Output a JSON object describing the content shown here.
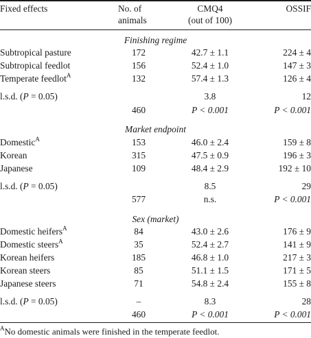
{
  "header": {
    "fixed_effects": "Fixed effects",
    "no_animals_line1": "No. of",
    "no_animals_line2": "animals",
    "cmq4_line1": "CMQ4",
    "cmq4_line2": "(out of 100)",
    "ossif": "OSSIF"
  },
  "finishing": {
    "title": "Finishing regime",
    "rows": [
      {
        "label": "Subtropical pasture",
        "n": "172",
        "cmq4": "42.7 ± 1.1",
        "ossif": "224 ± 4"
      },
      {
        "label": "Subtropical feedlot",
        "n": "156",
        "cmq4": "52.4 ± 1.0",
        "ossif": "147 ± 3"
      },
      {
        "label": "Temperate feedlot",
        "sup": "A",
        "n": "132",
        "cmq4": "57.4 ± 1.3",
        "ossif": "126 ± 4"
      }
    ],
    "lsd": {
      "pre": "l.s.d. (",
      "p": "P",
      "post": " = 0.05)",
      "n": "",
      "cmq4": "3.8",
      "ossif": "12"
    },
    "total": {
      "n": "460",
      "cmq4": "P < 0.001",
      "ossif": "P < 0.001"
    }
  },
  "market": {
    "title": "Market endpoint",
    "rows": [
      {
        "label": "Domestic",
        "sup": "A",
        "n": "153",
        "cmq4": "46.0 ± 2.4",
        "ossif": "159 ± 8"
      },
      {
        "label": "Korean",
        "n": "315",
        "cmq4": "47.5 ± 0.9",
        "ossif": "196 ± 3"
      },
      {
        "label": "Japanese",
        "n": "109",
        "cmq4": "48.4 ± 2.9",
        "ossif": "192 ± 10"
      }
    ],
    "lsd": {
      "pre": "l.s.d. (",
      "p": "P",
      "post": " = 0.05)",
      "n": "",
      "cmq4": "8.5",
      "ossif": "29"
    },
    "total": {
      "n": "577",
      "cmq4": "n.s.",
      "ossif": "P < 0.001"
    }
  },
  "sex": {
    "title": "Sex (market)",
    "rows": [
      {
        "label": "Domestic heifers",
        "sup": "A",
        "n": "84",
        "cmq4": "43.0 ± 2.6",
        "ossif": "176 ± 9"
      },
      {
        "label": "Domestic steers",
        "sup": "A",
        "n": "35",
        "cmq4": "52.4 ± 2.7",
        "ossif": "141 ± 9"
      },
      {
        "label": "Korean heifers",
        "n": "185",
        "cmq4": "46.8 ± 1.0",
        "ossif": "217 ± 3"
      },
      {
        "label": "Korean steers",
        "n": "85",
        "cmq4": "51.1 ± 1.5",
        "ossif": "171 ± 5"
      },
      {
        "label": "Japanese steers",
        "n": "71",
        "cmq4": "54.8 ± 2.4",
        "ossif": "155 ± 8"
      }
    ],
    "lsd": {
      "pre": "l.s.d. (",
      "p": "P",
      "post": " = 0.05)",
      "n": "–",
      "cmq4": "8.3",
      "ossif": "28"
    },
    "total": {
      "n": "460",
      "cmq4": "P < 0.001",
      "ossif": "P < 0.001"
    }
  },
  "footnote": {
    "sup": "A",
    "text": "No domestic animals were finished in the temperate feedlot."
  }
}
